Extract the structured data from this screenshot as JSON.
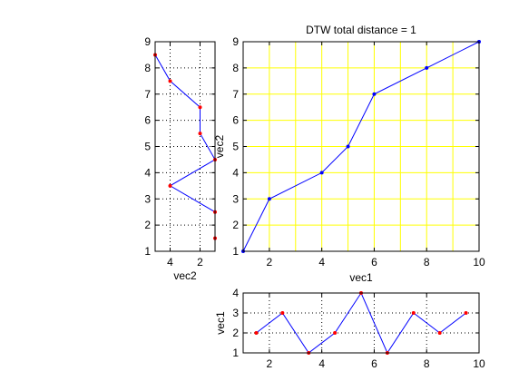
{
  "chart_data": [
    {
      "id": "main",
      "type": "line",
      "title": "DTW total distance = 1",
      "xlabel": "vec1",
      "ylabel": "vec2",
      "xlim": [
        1,
        10
      ],
      "ylim": [
        1,
        9
      ],
      "xticks": [
        2,
        4,
        6,
        8,
        10
      ],
      "yticks": [
        1,
        2,
        3,
        4,
        5,
        6,
        7,
        8,
        9
      ],
      "grid": true,
      "grid_color": "#ffff00",
      "line_color": "#0000ff",
      "marker_color": "#0000ff",
      "points": [
        [
          1,
          1
        ],
        [
          2,
          3
        ],
        [
          4,
          4
        ],
        [
          5,
          5
        ],
        [
          6,
          7
        ],
        [
          8,
          8
        ],
        [
          10,
          9
        ]
      ]
    },
    {
      "id": "left",
      "type": "line",
      "title": "",
      "xlabel": "vec2",
      "ylabel": "",
      "xlim": [
        1,
        5
      ],
      "x_reversed": true,
      "ylim": [
        1,
        9
      ],
      "xticks": [
        4,
        2
      ],
      "yticks": [
        1,
        2,
        3,
        4,
        5,
        6,
        7,
        8,
        9
      ],
      "grid": true,
      "grid_style": "dotted",
      "line_color": "#0000ff",
      "marker_color": "#ff0000",
      "points": [
        [
          5,
          8.5
        ],
        [
          4,
          7.5
        ],
        [
          2,
          6.5
        ],
        [
          2,
          5.5
        ],
        [
          1,
          4.5
        ],
        [
          4,
          3.5
        ],
        [
          1,
          2.5
        ],
        [
          1,
          1.5
        ]
      ]
    },
    {
      "id": "bottom",
      "type": "line",
      "title": "",
      "xlabel": "",
      "ylabel": "vec1",
      "xlim": [
        1,
        10
      ],
      "ylim": [
        1,
        4
      ],
      "xticks": [
        2,
        4,
        6,
        8,
        10
      ],
      "yticks": [
        1,
        2,
        3,
        4
      ],
      "grid": true,
      "grid_style": "dotted",
      "line_color": "#0000ff",
      "marker_color": "#ff0000",
      "points": [
        [
          1.5,
          2
        ],
        [
          2.5,
          3
        ],
        [
          3.5,
          1
        ],
        [
          4.5,
          2
        ],
        [
          5.5,
          4
        ],
        [
          6.5,
          1
        ],
        [
          7.5,
          3
        ],
        [
          8.5,
          2
        ],
        [
          9.5,
          3
        ]
      ]
    }
  ]
}
